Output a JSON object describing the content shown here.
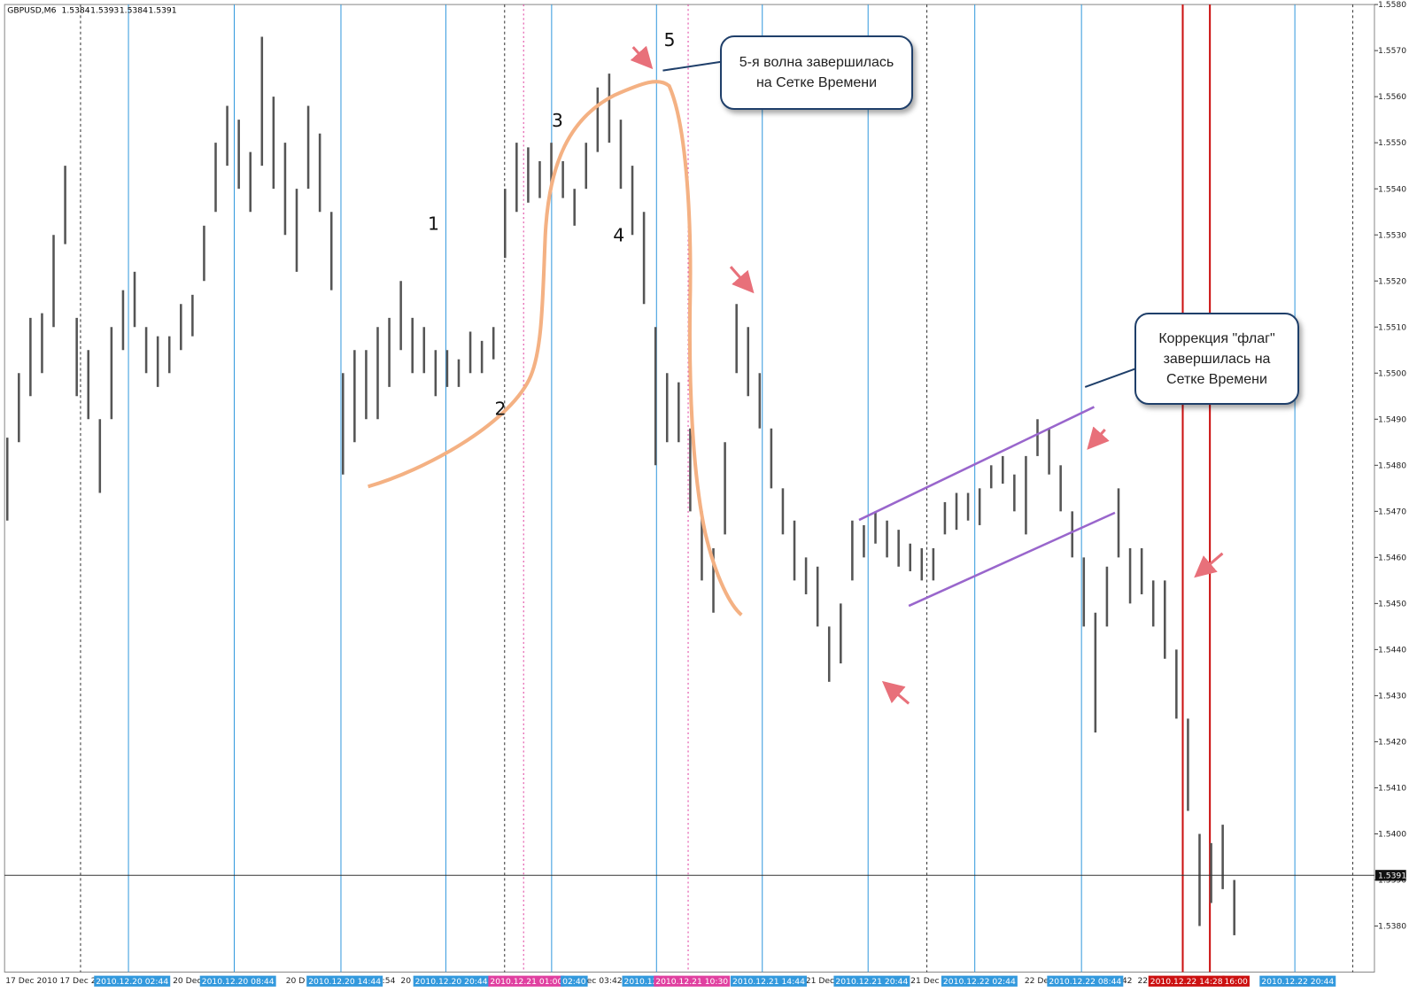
{
  "chart_data": {
    "type": "bar_range",
    "symbol": "GBPUSD,M6",
    "ohlc": [
      1.5384,
      1.5393,
      1.5384,
      1.5391
    ],
    "color": "#555555",
    "high": [
      1.5486,
      1.55,
      1.5512,
      1.5513,
      1.553,
      1.5545,
      1.5512,
      1.5505,
      1.549,
      1.551,
      1.5518,
      1.5522,
      1.551,
      1.5508,
      1.5508,
      1.5515,
      1.5517,
      1.5532,
      1.555,
      1.5558,
      1.5555,
      1.5548,
      1.5573,
      1.556,
      1.555,
      1.554,
      1.5558,
      1.5552,
      1.5535,
      1.55,
      1.5505,
      1.5505,
      1.551,
      1.5512,
      1.552,
      1.5512,
      1.551,
      1.5505,
      1.5505,
      1.5503,
      1.5509,
      1.5507,
      1.551,
      1.554,
      1.555,
      1.5549,
      1.5546,
      1.555,
      1.5546,
      1.554,
      1.555,
      1.5562,
      1.5565,
      1.5555,
      1.5545,
      1.5535,
      1.551,
      1.55,
      1.5498,
      1.5488,
      1.547,
      1.5462,
      1.5485,
      1.5515,
      1.551,
      1.55,
      1.5488,
      1.5475,
      1.5468,
      1.546,
      1.5458,
      1.5445,
      1.545,
      1.5468,
      1.5467,
      1.547,
      1.5468,
      1.5466,
      1.5463,
      1.5462,
      1.5462,
      1.5472,
      1.5474,
      1.5474,
      1.5475,
      1.548,
      1.5482,
      1.5478,
      1.5482,
      1.549,
      1.5488,
      1.548,
      1.547,
      1.546,
      1.5448,
      1.5458,
      1.5475,
      1.5462,
      1.5462,
      1.5455,
      1.5455,
      1.544,
      1.5425,
      1.54,
      1.5398,
      1.5402,
      1.539
    ],
    "low": [
      1.5468,
      1.5485,
      1.5495,
      1.55,
      1.551,
      1.5528,
      1.5495,
      1.549,
      1.5474,
      1.549,
      1.5505,
      1.551,
      1.55,
      1.5497,
      1.55,
      1.5505,
      1.5508,
      1.552,
      1.5535,
      1.5545,
      1.554,
      1.5535,
      1.5545,
      1.554,
      1.553,
      1.5522,
      1.554,
      1.5535,
      1.5518,
      1.5478,
      1.5485,
      1.549,
      1.549,
      1.5497,
      1.5505,
      1.55,
      1.55,
      1.5495,
      1.5497,
      1.5497,
      1.55,
      1.55,
      1.5503,
      1.5525,
      1.5535,
      1.5537,
      1.5538,
      1.554,
      1.5538,
      1.5532,
      1.554,
      1.5548,
      1.555,
      1.554,
      1.553,
      1.5515,
      1.548,
      1.5485,
      1.5485,
      1.547,
      1.5455,
      1.5448,
      1.5465,
      1.55,
      1.5495,
      1.5488,
      1.5475,
      1.5465,
      1.5455,
      1.5452,
      1.5445,
      1.5433,
      1.5437,
      1.5455,
      1.546,
      1.5463,
      1.546,
      1.5458,
      1.5457,
      1.5455,
      1.5455,
      1.5465,
      1.5466,
      1.5468,
      1.5467,
      1.5475,
      1.5476,
      1.547,
      1.5465,
      1.5482,
      1.5478,
      1.547,
      1.546,
      1.5445,
      1.5422,
      1.5445,
      1.546,
      1.545,
      1.5452,
      1.5445,
      1.5438,
      1.5425,
      1.5405,
      1.538,
      1.5385,
      1.5388,
      1.5378
    ],
    "last_price": 1.5391,
    "ylim": [
      1.537,
      1.558
    ],
    "yticks": [
      {
        "value": 1.538,
        "label": "1.5380"
      },
      {
        "value": 1.539,
        "label": "1.5390"
      },
      {
        "value": 1.54,
        "label": "1.5400"
      },
      {
        "value": 1.541,
        "label": "1.5410"
      },
      {
        "value": 1.542,
        "label": "1.5420"
      },
      {
        "value": 1.543,
        "label": "1.5430"
      },
      {
        "value": 1.544,
        "label": "1.5440"
      },
      {
        "value": 1.545,
        "label": "1.5450"
      },
      {
        "value": 1.546,
        "label": "1.5460"
      },
      {
        "value": 1.547,
        "label": "1.5470"
      },
      {
        "value": 1.548,
        "label": "1.5480"
      },
      {
        "value": 1.549,
        "label": "1.5490"
      },
      {
        "value": 1.55,
        "label": "1.5500"
      },
      {
        "value": 1.551,
        "label": "1.5510"
      },
      {
        "value": 1.552,
        "label": "1.5520"
      },
      {
        "value": 1.553,
        "label": "1.5530"
      },
      {
        "value": 1.554,
        "label": "1.5540"
      },
      {
        "value": 1.555,
        "label": "1.5550"
      },
      {
        "value": 1.556,
        "label": "1.5560"
      },
      {
        "value": 1.557,
        "label": "1.5570"
      },
      {
        "value": 1.558,
        "label": "1.5580"
      }
    ],
    "x_labels": [
      "17 Dec 2010",
      "17 Dec 2",
      "20 Dec",
      "20 D",
      "4:54",
      "20",
      "Dec 03:42",
      "21 Dec 16",
      "21 Dec",
      "22 Dec",
      "3:42",
      "22"
    ],
    "time_lines": [
      {
        "label": "2010.12.20 02:44",
        "color": "#3399dd"
      },
      {
        "label": "2010.12.20 08:44",
        "color": "#3399dd"
      },
      {
        "label": "2010.12.20 14:44",
        "color": "#3399dd"
      },
      {
        "label": "2010.12.20 20:44",
        "color": "#3399dd"
      },
      {
        "label": "2010.12.21 01:00",
        "color": "#e040a0"
      },
      {
        "label": "02:40",
        "color": "#3399dd"
      },
      {
        "label": "2010.12",
        "color": "#3399dd"
      },
      {
        "label": "2010.12.21 10:30",
        "color": "#e040a0"
      },
      {
        "label": "2010.12.21 14:44",
        "color": "#3399dd"
      },
      {
        "label": "2010.12.21 20:44",
        "color": "#3399dd"
      },
      {
        "label": "2010.12.22 02:44",
        "color": "#3399dd"
      },
      {
        "label": "2010.12.22 08:44",
        "color": "#3399dd"
      },
      {
        "label": "2010.12.22 14:28",
        "color": "#cc1111"
      },
      {
        "label": "16:00",
        "color": "#cc1111"
      },
      {
        "label": "2010.12.22 20:44",
        "color": "#3399dd"
      }
    ],
    "wave_labels": [
      "1",
      "2",
      "3",
      "4",
      "5"
    ],
    "annotations": [
      "5-я волна завершилась на Сетке Времени",
      "Коррекция \"флаг\" завершилась на Сетке Времени"
    ]
  }
}
